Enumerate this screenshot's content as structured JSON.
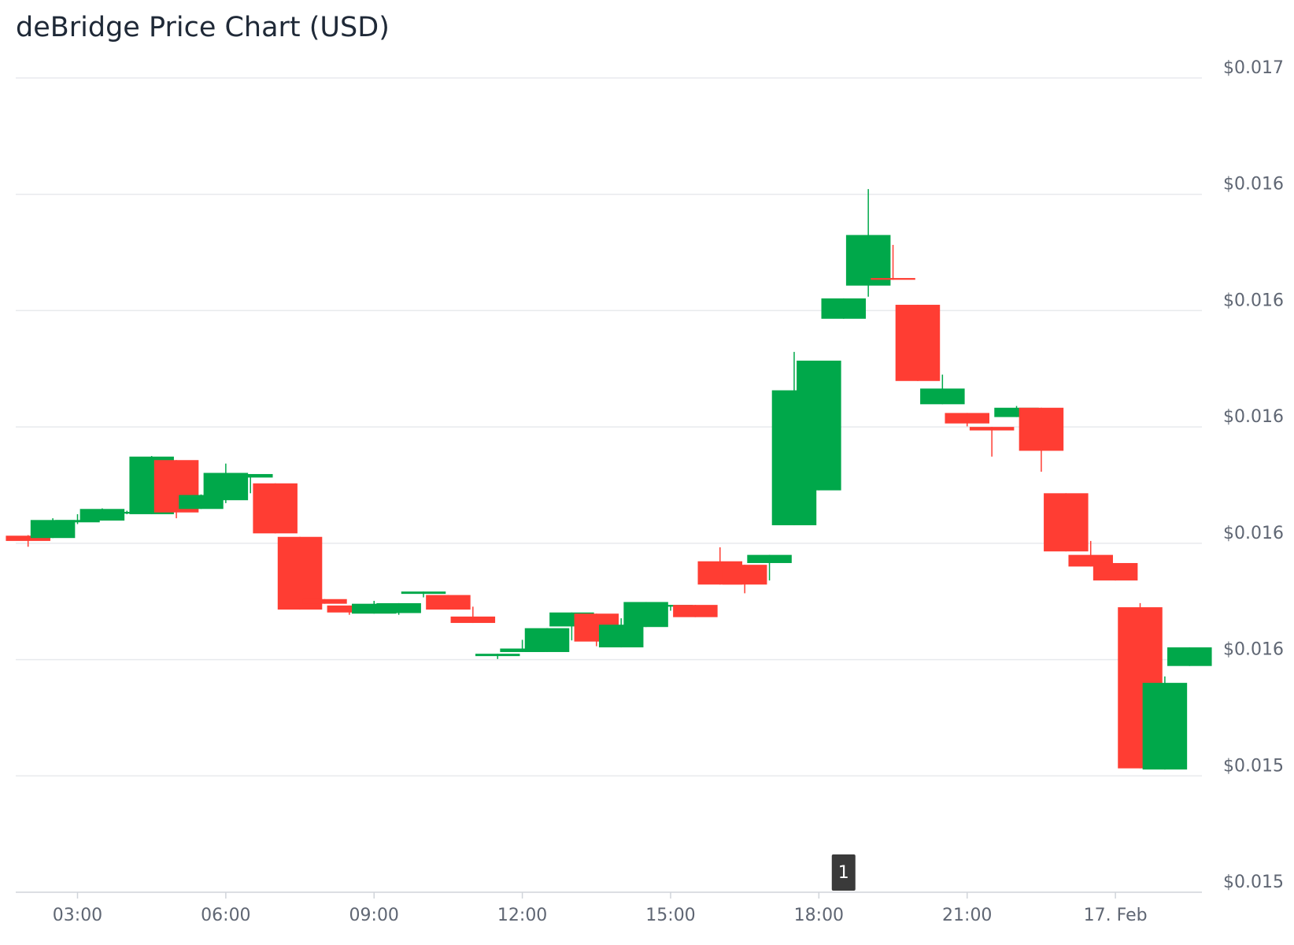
{
  "chart_data": {
    "type": "candlestick",
    "title": "deBridge Price Chart (USD)",
    "x": [
      2,
      2.5,
      3,
      3.5,
      4,
      4.5,
      5,
      5.5,
      6,
      6.5,
      7,
      7.5,
      8,
      8.5,
      9,
      9.5,
      10,
      10.5,
      11,
      11.5,
      12,
      12.5,
      13,
      13.5,
      14,
      14.5,
      15,
      15.5,
      16,
      16.5,
      17,
      17.5,
      18,
      18.5,
      19,
      19.5,
      20,
      20.5,
      21,
      21.5,
      22,
      22.5,
      23,
      23.5,
      24,
      24.5,
      25,
      25.5
    ],
    "open": [
      0.015813,
      0.015809,
      0.015836,
      0.015839,
      0.015851,
      0.01585,
      0.015943,
      0.015859,
      0.015874,
      0.015913,
      0.015903,
      0.015811,
      0.015704,
      0.015693,
      0.015679,
      0.01568,
      0.015713,
      0.015711,
      0.015674,
      0.015606,
      0.015613,
      0.015613,
      0.015657,
      0.015679,
      0.015621,
      0.015656,
      0.015691,
      0.015694,
      0.015769,
      0.015763,
      0.015766,
      0.015831,
      0.015891,
      0.016186,
      0.016243,
      0.016256,
      0.01621,
      0.016039,
      0.016024,
      0.016,
      0.016017,
      0.016033,
      0.015886,
      0.01578,
      0.015766,
      0.01569,
      0.015411,
      0.015589
    ],
    "high": [
      0.015814,
      0.015843,
      0.01585,
      0.01586,
      0.015856,
      0.01595,
      0.015943,
      0.015884,
      0.015937,
      0.015919,
      0.015903,
      0.015811,
      0.015704,
      0.015693,
      0.015701,
      0.015697,
      0.015717,
      0.015711,
      0.015691,
      0.01561,
      0.015634,
      0.015654,
      0.015681,
      0.015679,
      0.015671,
      0.015699,
      0.015694,
      0.015694,
      0.015793,
      0.015763,
      0.01578,
      0.016129,
      0.016114,
      0.016221,
      0.016409,
      0.016313,
      0.01621,
      0.01609,
      0.016024,
      0.016,
      0.016036,
      0.016033,
      0.015886,
      0.015804,
      0.015766,
      0.015697,
      0.015571,
      0.015621
    ],
    "low": [
      0.015794,
      0.015809,
      0.015833,
      0.015839,
      0.01585,
      0.01585,
      0.015843,
      0.015859,
      0.015869,
      0.015886,
      0.015817,
      0.015686,
      0.015696,
      0.015677,
      0.015679,
      0.015677,
      0.015707,
      0.015686,
      0.015663,
      0.015601,
      0.015613,
      0.015613,
      0.015633,
      0.015623,
      0.015621,
      0.015656,
      0.015684,
      0.015673,
      0.015729,
      0.015714,
      0.015736,
      0.015831,
      0.015891,
      0.016186,
      0.016224,
      0.016253,
      0.016079,
      0.016039,
      0.016001,
      0.015949,
      0.016017,
      0.015923,
      0.015786,
      0.01576,
      0.015736,
      0.015413,
      0.015411,
      0.015589
    ],
    "close": [
      0.015804,
      0.01584,
      0.01584,
      0.015859,
      0.015854,
      0.015949,
      0.015853,
      0.015883,
      0.015921,
      0.015919,
      0.015817,
      0.015686,
      0.015696,
      0.015681,
      0.015696,
      0.015697,
      0.015717,
      0.015686,
      0.015663,
      0.01561,
      0.015619,
      0.015654,
      0.015681,
      0.015631,
      0.01566,
      0.015699,
      0.015694,
      0.015673,
      0.015729,
      0.015729,
      0.01578,
      0.016063,
      0.016114,
      0.016221,
      0.01633,
      0.016253,
      0.016079,
      0.016066,
      0.016006,
      0.015994,
      0.016033,
      0.015959,
      0.015786,
      0.01576,
      0.015736,
      0.015413,
      0.01556,
      0.015621
    ],
    "up_color": "#00a84a",
    "down_color": "#ff3d33",
    "xlim": [
      1.75,
      25.75
    ],
    "xticks": [
      {
        "value": 3,
        "label": "03:00"
      },
      {
        "value": 6,
        "label": "06:00"
      },
      {
        "value": 9,
        "label": "09:00"
      },
      {
        "value": 12,
        "label": "12:00"
      },
      {
        "value": 15,
        "label": "15:00"
      },
      {
        "value": 18,
        "label": "18:00"
      },
      {
        "value": 21,
        "label": "21:00"
      },
      {
        "value": 24,
        "label": "17. Feb"
      }
    ],
    "ylim": [
      0.0152,
      0.0166
    ],
    "yticks": [
      {
        "value": 0.0152,
        "label": "$0.015"
      },
      {
        "value": 0.0154,
        "label": "$0.015"
      },
      {
        "value": 0.0156,
        "label": "$0.016"
      },
      {
        "value": 0.0158,
        "label": "$0.016"
      },
      {
        "value": 0.016,
        "label": "$0.016"
      },
      {
        "value": 0.0162,
        "label": "$0.016"
      },
      {
        "value": 0.0164,
        "label": "$0.016"
      },
      {
        "value": 0.0166,
        "label": "$0.017"
      }
    ],
    "grid": true,
    "annotations": [
      {
        "x": 18.5,
        "label": "1"
      }
    ]
  }
}
